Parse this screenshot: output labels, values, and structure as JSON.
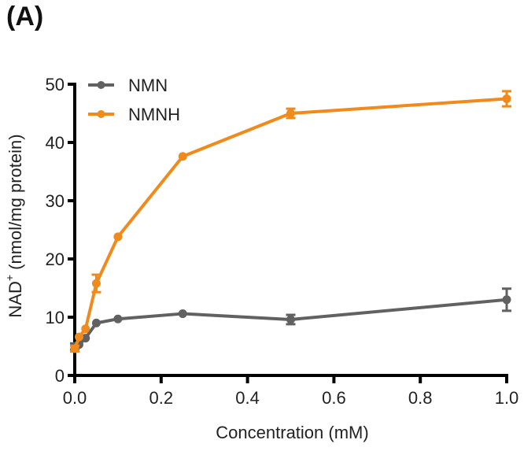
{
  "panel_label": "(A)",
  "chart_data": {
    "type": "line",
    "title": "",
    "xlabel": "Concentration (mM)",
    "ylabel": "NAD⁺ (nmol/mg protein)",
    "ylabel_main": "NAD",
    "ylabel_sup": "+",
    "ylabel_rest": " (nmol/mg protein)",
    "xlim": [
      0,
      1.0
    ],
    "ylim": [
      0,
      50
    ],
    "xticks": [
      0.0,
      0.2,
      0.4,
      0.6,
      0.8,
      1.0
    ],
    "xtick_labels": [
      "0.0",
      "0.2",
      "0.4",
      "0.6",
      "0.8",
      "1.0"
    ],
    "yticks": [
      0,
      10,
      20,
      30,
      40,
      50
    ],
    "ytick_labels": [
      "0",
      "10",
      "20",
      "30",
      "40",
      "50"
    ],
    "grid": false,
    "legend_position": "top-left",
    "series": [
      {
        "name": "NMN",
        "color": "#616161",
        "x": [
          0,
          0.01,
          0.025,
          0.05,
          0.1,
          0.25,
          0.5,
          1.0
        ],
        "y": [
          5.0,
          5.3,
          6.4,
          9.0,
          9.7,
          10.6,
          9.6,
          13.0
        ],
        "err": [
          0.5,
          0.3,
          0.4,
          0.4,
          0.3,
          0.3,
          0.8,
          1.9
        ]
      },
      {
        "name": "NMNH",
        "color": "#f08a1c",
        "x": [
          0,
          0.01,
          0.025,
          0.05,
          0.1,
          0.25,
          0.5,
          1.0
        ],
        "y": [
          4.6,
          6.6,
          8.0,
          15.8,
          23.8,
          37.6,
          45.0,
          47.5
        ],
        "err": [
          0.5,
          0.4,
          0.4,
          1.5,
          0.4,
          0.4,
          0.8,
          1.3
        ]
      }
    ]
  }
}
